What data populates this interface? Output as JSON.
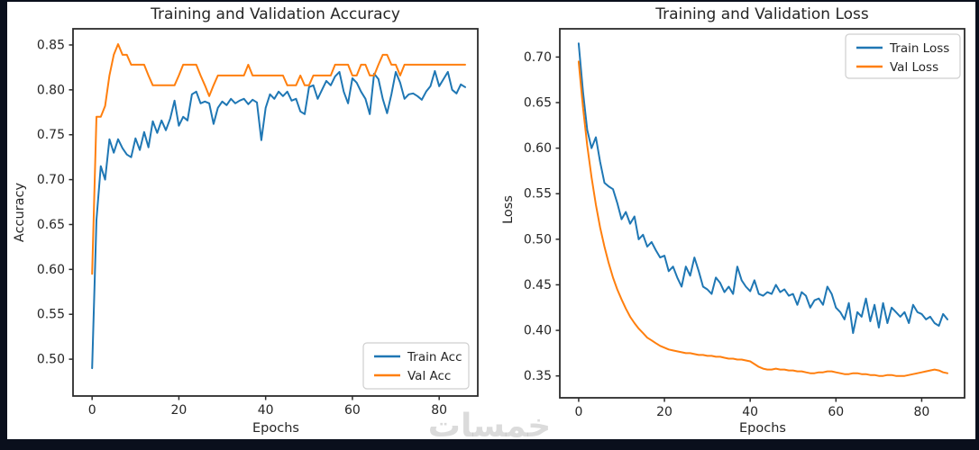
{
  "watermark": {
    "text": "خمسات"
  },
  "frame_color": "#0a0f1c",
  "figure_background": "#ffffff",
  "chart_data": [
    {
      "type": "line",
      "title": "Training and Validation Accuracy",
      "xlabel": "Epochs",
      "ylabel": "Accuracy",
      "grid": false,
      "xlim": [
        -4.4,
        88.9
      ],
      "ylim": [
        0.459,
        0.868
      ],
      "xticks": [
        0,
        20,
        40,
        60,
        80
      ],
      "xtick_labels": [
        "0",
        "20",
        "40",
        "60",
        "80"
      ],
      "yticks": [
        0.5,
        0.55,
        0.6,
        0.65,
        0.7,
        0.75,
        0.8,
        0.85
      ],
      "ytick_labels": [
        "0.50",
        "0.55",
        "0.60",
        "0.65",
        "0.70",
        "0.75",
        "0.80",
        "0.85"
      ],
      "legend_position": "lower-right",
      "series": [
        {
          "name": "Train Acc",
          "color": "#1f77b4",
          "values": [
            0.49,
            0.655,
            0.715,
            0.7,
            0.745,
            0.73,
            0.745,
            0.735,
            0.728,
            0.725,
            0.746,
            0.733,
            0.753,
            0.736,
            0.765,
            0.752,
            0.766,
            0.755,
            0.768,
            0.788,
            0.76,
            0.77,
            0.766,
            0.795,
            0.798,
            0.785,
            0.787,
            0.785,
            0.762,
            0.78,
            0.787,
            0.783,
            0.79,
            0.785,
            0.788,
            0.79,
            0.784,
            0.789,
            0.786,
            0.744,
            0.78,
            0.795,
            0.79,
            0.798,
            0.793,
            0.798,
            0.788,
            0.79,
            0.776,
            0.773,
            0.803,
            0.805,
            0.79,
            0.8,
            0.81,
            0.805,
            0.815,
            0.82,
            0.798,
            0.785,
            0.813,
            0.808,
            0.798,
            0.79,
            0.773,
            0.818,
            0.812,
            0.79,
            0.774,
            0.795,
            0.82,
            0.808,
            0.79,
            0.795,
            0.796,
            0.793,
            0.789,
            0.798,
            0.804,
            0.821,
            0.804,
            0.812,
            0.82,
            0.8,
            0.796,
            0.806,
            0.803
          ]
        },
        {
          "name": "Val Acc",
          "color": "#ff7f0e",
          "values": [
            0.595,
            0.77,
            0.77,
            0.782,
            0.816,
            0.839,
            0.851,
            0.839,
            0.839,
            0.828,
            0.828,
            0.828,
            0.828,
            0.816,
            0.805,
            0.805,
            0.805,
            0.805,
            0.805,
            0.805,
            0.816,
            0.828,
            0.828,
            0.828,
            0.828,
            0.816,
            0.805,
            0.793,
            0.805,
            0.816,
            0.816,
            0.816,
            0.816,
            0.816,
            0.816,
            0.816,
            0.828,
            0.816,
            0.816,
            0.816,
            0.816,
            0.816,
            0.816,
            0.816,
            0.816,
            0.805,
            0.805,
            0.805,
            0.816,
            0.805,
            0.805,
            0.816,
            0.816,
            0.816,
            0.816,
            0.816,
            0.828,
            0.828,
            0.828,
            0.828,
            0.816,
            0.816,
            0.828,
            0.828,
            0.816,
            0.816,
            0.828,
            0.839,
            0.839,
            0.828,
            0.828,
            0.816,
            0.828,
            0.828,
            0.828,
            0.828,
            0.828,
            0.828,
            0.828,
            0.828,
            0.828,
            0.828,
            0.828,
            0.828,
            0.828,
            0.828,
            0.828
          ]
        }
      ]
    },
    {
      "type": "line",
      "title": "Training and Validation Loss",
      "xlabel": "Epochs",
      "ylabel": "Loss",
      "grid": false,
      "xlim": [
        -4.4,
        90.0
      ],
      "ylim": [
        0.326,
        0.731
      ],
      "xticks": [
        0,
        20,
        40,
        60,
        80
      ],
      "xtick_labels": [
        "0",
        "20",
        "40",
        "60",
        "80"
      ],
      "yticks": [
        0.35,
        0.4,
        0.45,
        0.5,
        0.55,
        0.6,
        0.65,
        0.7
      ],
      "ytick_labels": [
        "0.35",
        "0.40",
        "0.45",
        "0.50",
        "0.55",
        "0.60",
        "0.65",
        "0.70"
      ],
      "legend_position": "upper-right",
      "series": [
        {
          "name": "Train Loss",
          "color": "#1f77b4",
          "values": [
            0.715,
            0.662,
            0.62,
            0.6,
            0.612,
            0.585,
            0.562,
            0.558,
            0.555,
            0.54,
            0.522,
            0.53,
            0.517,
            0.525,
            0.5,
            0.505,
            0.492,
            0.497,
            0.488,
            0.48,
            0.482,
            0.465,
            0.47,
            0.458,
            0.448,
            0.47,
            0.46,
            0.48,
            0.465,
            0.448,
            0.445,
            0.44,
            0.458,
            0.452,
            0.442,
            0.448,
            0.44,
            0.47,
            0.455,
            0.448,
            0.443,
            0.455,
            0.44,
            0.438,
            0.442,
            0.44,
            0.45,
            0.442,
            0.445,
            0.438,
            0.44,
            0.428,
            0.442,
            0.438,
            0.425,
            0.433,
            0.435,
            0.428,
            0.448,
            0.44,
            0.425,
            0.42,
            0.412,
            0.43,
            0.397,
            0.42,
            0.415,
            0.435,
            0.41,
            0.428,
            0.403,
            0.43,
            0.408,
            0.425,
            0.42,
            0.415,
            0.42,
            0.408,
            0.428,
            0.42,
            0.418,
            0.412,
            0.415,
            0.408,
            0.405,
            0.418,
            0.412
          ]
        },
        {
          "name": "Val Loss",
          "color": "#ff7f0e",
          "values": [
            0.695,
            0.645,
            0.603,
            0.568,
            0.538,
            0.513,
            0.492,
            0.474,
            0.458,
            0.445,
            0.434,
            0.424,
            0.415,
            0.408,
            0.402,
            0.397,
            0.392,
            0.389,
            0.386,
            0.383,
            0.381,
            0.379,
            0.378,
            0.377,
            0.376,
            0.375,
            0.375,
            0.374,
            0.373,
            0.373,
            0.372,
            0.372,
            0.371,
            0.371,
            0.37,
            0.369,
            0.369,
            0.368,
            0.368,
            0.367,
            0.366,
            0.363,
            0.36,
            0.358,
            0.357,
            0.357,
            0.358,
            0.357,
            0.357,
            0.356,
            0.356,
            0.355,
            0.355,
            0.354,
            0.353,
            0.353,
            0.354,
            0.354,
            0.355,
            0.355,
            0.354,
            0.353,
            0.352,
            0.352,
            0.353,
            0.353,
            0.352,
            0.352,
            0.351,
            0.351,
            0.35,
            0.35,
            0.351,
            0.351,
            0.35,
            0.35,
            0.35,
            0.351,
            0.352,
            0.353,
            0.354,
            0.355,
            0.356,
            0.357,
            0.356,
            0.354,
            0.353
          ]
        }
      ]
    }
  ]
}
